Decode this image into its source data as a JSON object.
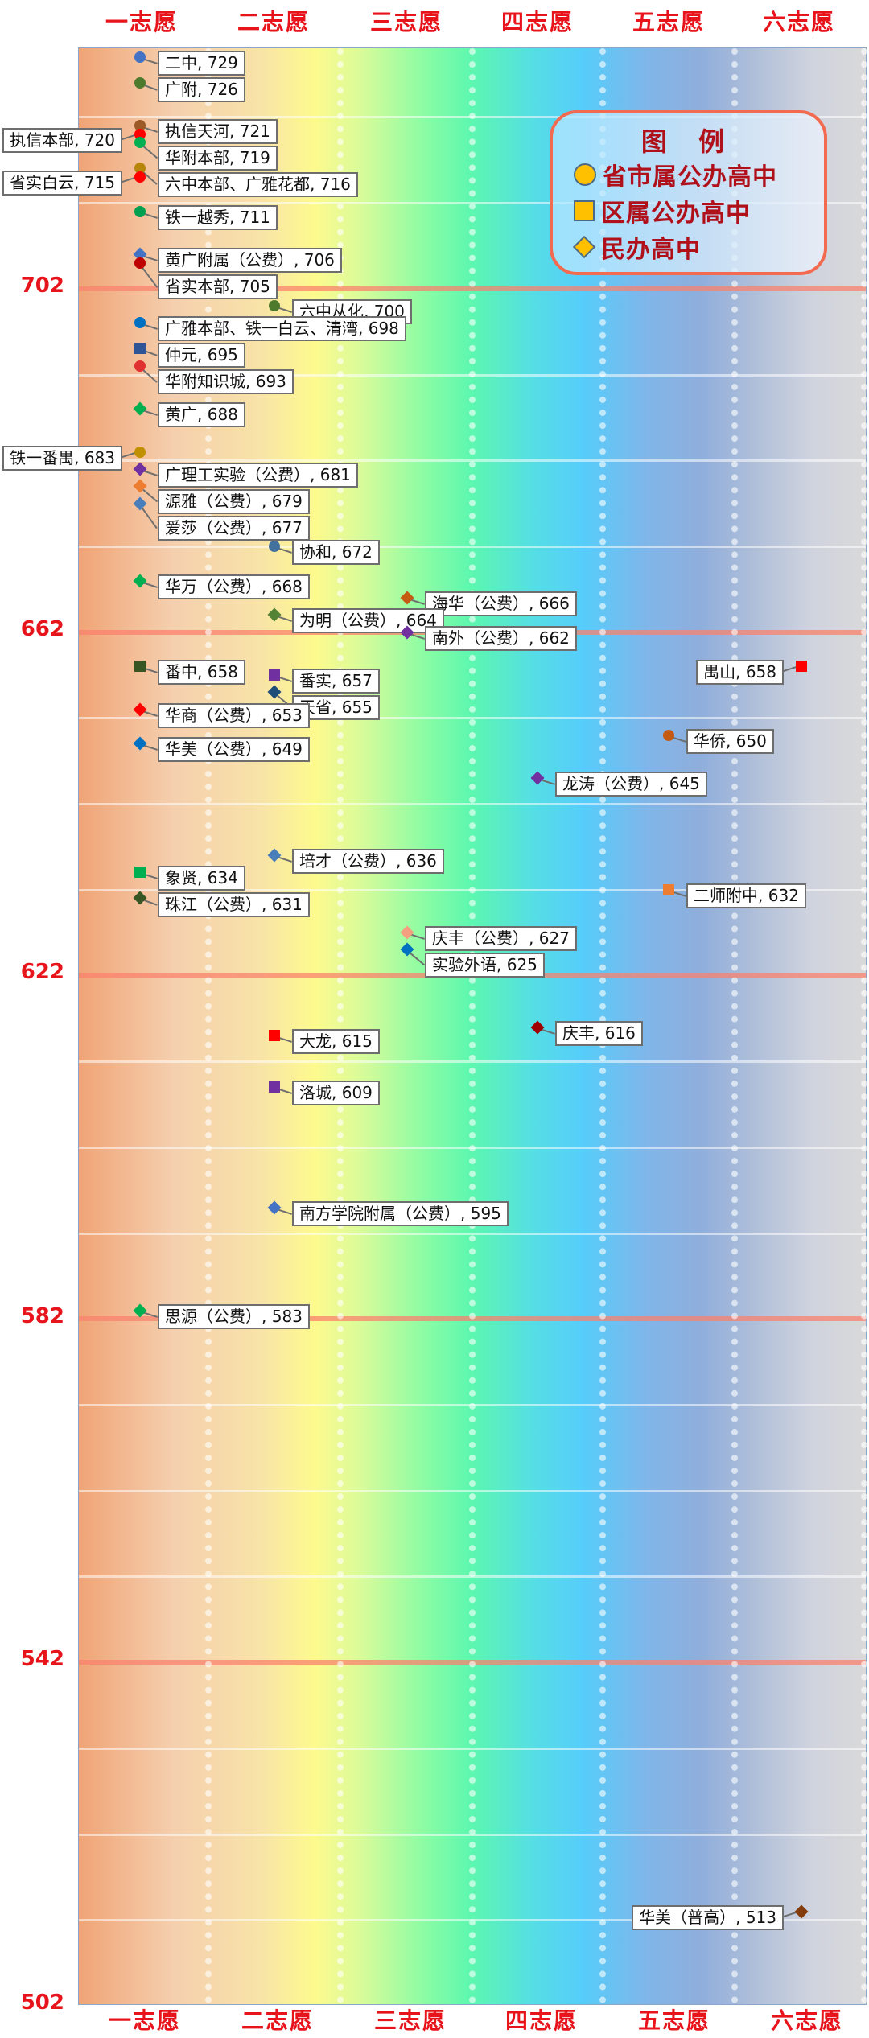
{
  "chart_data": {
    "type": "scatter",
    "title": "",
    "xlabel": "",
    "ylabel": "",
    "categories": [
      "一志愿",
      "二志愿",
      "三志愿",
      "四志愿",
      "五志愿",
      "六志愿"
    ],
    "ylim": [
      502,
      730
    ],
    "yticks_labeled": [
      702,
      662,
      622,
      582,
      542,
      502
    ],
    "minor_grid_step": 10,
    "grid": true,
    "legend": {
      "title": "图 例",
      "position": "upper-right",
      "entries": [
        {
          "shape": "circle",
          "label": "省市属公办高中"
        },
        {
          "shape": "square",
          "label": "区属公办高中"
        },
        {
          "shape": "diamond",
          "label": "民办高中"
        }
      ]
    },
    "points": [
      {
        "cat": 0,
        "name": "二中",
        "score": 729,
        "shape": "circle",
        "color": "#4472c4",
        "side": "right"
      },
      {
        "cat": 0,
        "name": "广附",
        "score": 726,
        "shape": "circle",
        "color": "#4e7a2e",
        "side": "right"
      },
      {
        "cat": 0,
        "name": "执信天河",
        "score": 721,
        "shape": "circle",
        "color": "#9c5a26",
        "side": "right"
      },
      {
        "cat": 0,
        "name": "执信本部",
        "score": 720,
        "shape": "circle",
        "color": "#ff0000",
        "side": "left"
      },
      {
        "cat": 0,
        "name": "华附本部",
        "score": 719,
        "shape": "circle",
        "color": "#00b050",
        "side": "right"
      },
      {
        "cat": 0,
        "name": "六中本部、广雅花都",
        "score": 716,
        "shape": "circle",
        "color": "#b8860b",
        "side": "right"
      },
      {
        "cat": 0,
        "name": "省实白云",
        "score": 715,
        "shape": "circle",
        "color": "#ff0000",
        "side": "left"
      },
      {
        "cat": 0,
        "name": "铁一越秀",
        "score": 711,
        "shape": "circle",
        "color": "#00a050",
        "side": "right"
      },
      {
        "cat": 0,
        "name": "黄广附属（公费）",
        "score": 706,
        "shape": "diamond",
        "color": "#4472c4",
        "side": "right"
      },
      {
        "cat": 0,
        "name": "省实本部",
        "score": 705,
        "shape": "circle",
        "color": "#c00000",
        "side": "right"
      },
      {
        "cat": 1,
        "name": "六中从化",
        "score": 700,
        "shape": "circle",
        "color": "#4e7a2e",
        "side": "right"
      },
      {
        "cat": 0,
        "name": "广雅本部、铁一白云、清湾",
        "score": 698,
        "shape": "circle",
        "color": "#0070c0",
        "side": "right"
      },
      {
        "cat": 0,
        "name": "仲元",
        "score": 695,
        "shape": "square",
        "color": "#2f5597",
        "side": "right"
      },
      {
        "cat": 0,
        "name": "华附知识城",
        "score": 693,
        "shape": "circle",
        "color": "#e03030",
        "side": "right"
      },
      {
        "cat": 0,
        "name": "黄广",
        "score": 688,
        "shape": "diamond",
        "color": "#00b050",
        "side": "right"
      },
      {
        "cat": 0,
        "name": "铁一番禺",
        "score": 683,
        "shape": "circle",
        "color": "#c09000",
        "side": "left"
      },
      {
        "cat": 0,
        "name": "广理工实验（公费）",
        "score": 681,
        "shape": "diamond",
        "color": "#7030a0",
        "side": "right"
      },
      {
        "cat": 0,
        "name": "源雅（公费）",
        "score": 679,
        "shape": "diamond",
        "color": "#ed7d31",
        "side": "right"
      },
      {
        "cat": 0,
        "name": "爱莎（公费）",
        "score": 677,
        "shape": "diamond",
        "color": "#4a7ebb",
        "side": "right"
      },
      {
        "cat": 1,
        "name": "协和",
        "score": 672,
        "shape": "circle",
        "color": "#41719c",
        "side": "right"
      },
      {
        "cat": 0,
        "name": "华万（公费）",
        "score": 668,
        "shape": "diamond",
        "color": "#00b050",
        "side": "right"
      },
      {
        "cat": 2,
        "name": "海华（公费）",
        "score": 666,
        "shape": "diamond",
        "color": "#c55a11",
        "side": "right"
      },
      {
        "cat": 1,
        "name": "为明（公费）",
        "score": 664,
        "shape": "diamond",
        "color": "#548235",
        "side": "right"
      },
      {
        "cat": 2,
        "name": "南外（公费）",
        "score": 662,
        "shape": "diamond",
        "color": "#7030a0",
        "side": "right"
      },
      {
        "cat": 0,
        "name": "番中",
        "score": 658,
        "shape": "square",
        "color": "#375623",
        "side": "right"
      },
      {
        "cat": 5,
        "name": "禺山",
        "score": 658,
        "shape": "square",
        "color": "#ff0000",
        "side": "left"
      },
      {
        "cat": 1,
        "name": "番实",
        "score": 657,
        "shape": "square",
        "color": "#7030a0",
        "side": "right"
      },
      {
        "cat": 1,
        "name": "天省",
        "score": 655,
        "shape": "diamond",
        "color": "#1f4e79",
        "side": "right"
      },
      {
        "cat": 0,
        "name": "华商（公费）",
        "score": 653,
        "shape": "diamond",
        "color": "#ff0000",
        "side": "right"
      },
      {
        "cat": 4,
        "name": "华侨",
        "score": 650,
        "shape": "circle",
        "color": "#c55a11",
        "side": "right"
      },
      {
        "cat": 0,
        "name": "华美（公费）",
        "score": 649,
        "shape": "diamond",
        "color": "#0070c0",
        "side": "right"
      },
      {
        "cat": 3,
        "name": "龙涛（公费）",
        "score": 645,
        "shape": "diamond",
        "color": "#7030a0",
        "side": "right"
      },
      {
        "cat": 1,
        "name": "培才（公费）",
        "score": 636,
        "shape": "diamond",
        "color": "#4a7ebb",
        "side": "right"
      },
      {
        "cat": 0,
        "name": "象贤",
        "score": 634,
        "shape": "square",
        "color": "#00b050",
        "side": "right"
      },
      {
        "cat": 4,
        "name": "二师附中",
        "score": 632,
        "shape": "square",
        "color": "#ed7d31",
        "side": "right"
      },
      {
        "cat": 0,
        "name": "珠江（公费）",
        "score": 631,
        "shape": "diamond",
        "color": "#375623",
        "side": "right"
      },
      {
        "cat": 2,
        "name": "庆丰（公费）",
        "score": 627,
        "shape": "diamond",
        "color": "#f4a080",
        "side": "right"
      },
      {
        "cat": 2,
        "name": "实验外语",
        "score": 625,
        "shape": "diamond",
        "color": "#0070c0",
        "side": "right"
      },
      {
        "cat": 3,
        "name": "庆丰",
        "score": 616,
        "shape": "diamond",
        "color": "#a00000",
        "side": "right"
      },
      {
        "cat": 1,
        "name": "大龙",
        "score": 615,
        "shape": "square",
        "color": "#ff0000",
        "side": "right"
      },
      {
        "cat": 1,
        "name": "洛城",
        "score": 609,
        "shape": "square",
        "color": "#7030a0",
        "side": "right"
      },
      {
        "cat": 1,
        "name": "南方学院附属（公费）",
        "score": 595,
        "shape": "diamond",
        "color": "#4472c4",
        "side": "right"
      },
      {
        "cat": 0,
        "name": "思源（公费）",
        "score": 583,
        "shape": "diamond",
        "color": "#00b050",
        "side": "right"
      },
      {
        "cat": 5,
        "name": "华美（普高）",
        "score": 513,
        "shape": "diamond",
        "color": "#843c0c",
        "side": "left"
      }
    ]
  },
  "axis": {
    "top_labels": [
      "一志愿",
      "二志愿",
      "三志愿",
      "四志愿",
      "五志愿",
      "六志愿"
    ],
    "bottom_labels": [
      "一志愿",
      "二志愿",
      "三志愿",
      "四志愿",
      "五志愿",
      "六志愿"
    ],
    "y_labels": [
      "702",
      "662",
      "622",
      "582",
      "542",
      "502"
    ]
  },
  "legend": {
    "title": "图 例",
    "items": [
      "省市属公办高中",
      "区属公办高中",
      "民办高中"
    ]
  }
}
